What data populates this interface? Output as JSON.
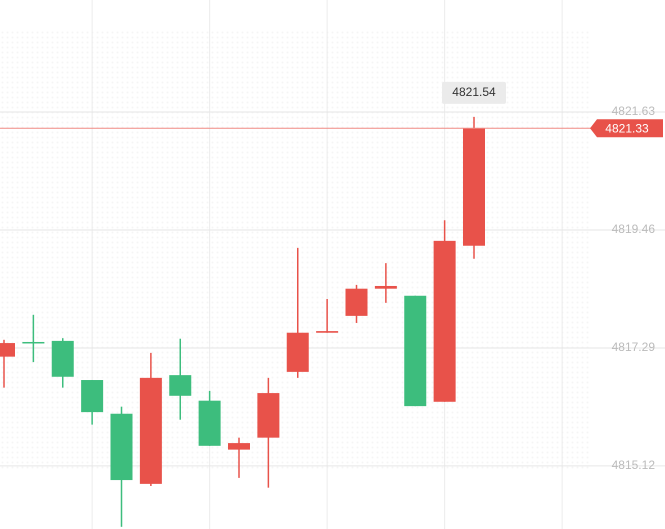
{
  "chart_data": {
    "type": "candlestick",
    "categories": [
      null,
      null,
      null,
      null,
      null,
      null,
      null,
      null,
      null,
      null,
      null,
      null,
      null,
      null,
      null,
      null,
      null
    ],
    "candles": [
      {
        "open": 4817.13,
        "high": 4817.44,
        "low": 4816.56,
        "close": 4817.38
      },
      {
        "open": 4817.4,
        "high": 4817.9,
        "low": 4817.03,
        "close": 4817.38
      },
      {
        "open": 4817.42,
        "high": 4817.47,
        "low": 4816.56,
        "close": 4816.76
      },
      {
        "open": 4816.7,
        "high": 4816.7,
        "low": 4815.88,
        "close": 4816.11
      },
      {
        "open": 4816.08,
        "high": 4816.21,
        "low": 4814.0,
        "close": 4814.86
      },
      {
        "open": 4814.79,
        "high": 4817.2,
        "low": 4814.75,
        "close": 4816.74
      },
      {
        "open": 4816.79,
        "high": 4817.46,
        "low": 4815.97,
        "close": 4816.41
      },
      {
        "open": 4816.32,
        "high": 4816.5,
        "low": 4815.49,
        "close": 4815.49
      },
      {
        "open": 4815.42,
        "high": 4815.64,
        "low": 4814.9,
        "close": 4815.54
      },
      {
        "open": 4815.64,
        "high": 4816.74,
        "low": 4814.72,
        "close": 4816.46
      },
      {
        "open": 4816.85,
        "high": 4819.13,
        "low": 4816.74,
        "close": 4817.57
      },
      {
        "open": 4817.57,
        "high": 4818.19,
        "low": 4817.57,
        "close": 4817.6
      },
      {
        "open": 4817.88,
        "high": 4818.45,
        "low": 4817.75,
        "close": 4818.38
      },
      {
        "open": 4818.38,
        "high": 4818.85,
        "low": 4818.12,
        "close": 4818.43
      },
      {
        "open": 4818.25,
        "high": 4818.25,
        "low": 4816.22,
        "close": 4816.22
      },
      {
        "open": 4816.3,
        "high": 4819.64,
        "low": 4816.3,
        "close": 4819.26
      },
      {
        "open": 4819.17,
        "high": 4821.54,
        "low": 4818.93,
        "close": 4821.33
      }
    ],
    "up_color": "#e8524a",
    "down_color": "#3dbd7d",
    "ylim": [
      4813.96,
      4823.69
    ],
    "yticks": [
      4815.12,
      4817.29,
      4819.46,
      4821.63
    ],
    "grid": true
  }
}
